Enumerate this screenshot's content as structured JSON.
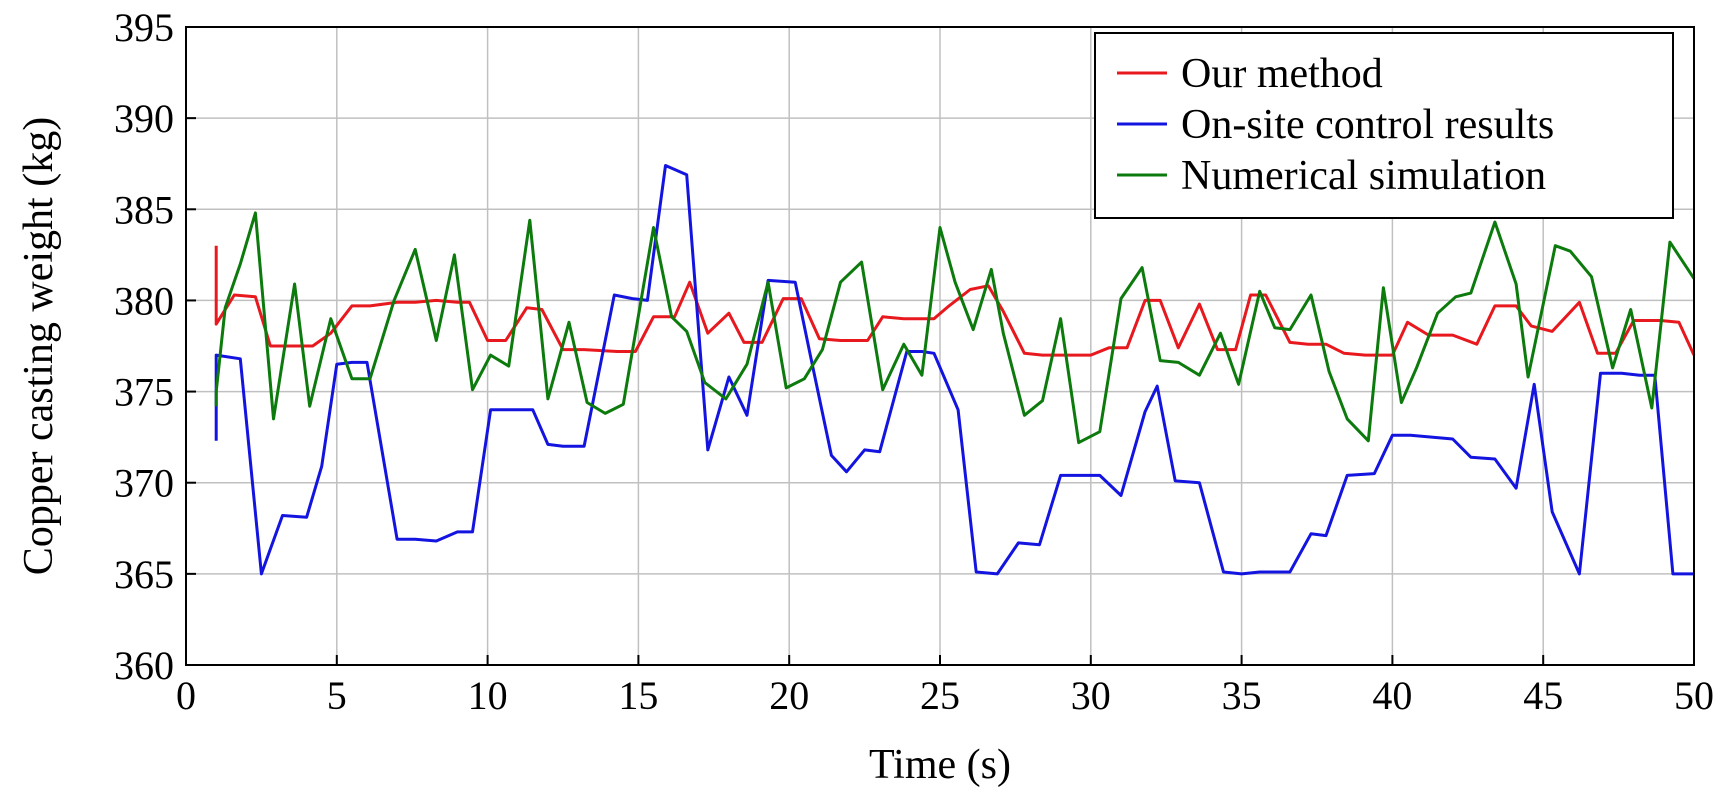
{
  "chart_data": {
    "type": "line",
    "title": "",
    "xlabel": "Time (s)",
    "ylabel": "Copper casting weight (kg)",
    "xlim": [
      0,
      50
    ],
    "ylim": [
      360,
      395
    ],
    "xticks": [
      0,
      5,
      10,
      15,
      20,
      25,
      30,
      35,
      40,
      45,
      50
    ],
    "yticks": [
      360,
      365,
      370,
      375,
      380,
      385,
      390,
      395
    ],
    "grid": true,
    "legend_position": "top-right",
    "series": [
      {
        "name": "Our method",
        "color": "#e8191e",
        "x": [
          1.0,
          1.0,
          1.0,
          1.6,
          2.3,
          2.8,
          3.6,
          4.2,
          4.8,
          5.5,
          6.1,
          7.0,
          7.6,
          8.3,
          9.0,
          9.4,
          10.0,
          10.6,
          11.3,
          11.8,
          12.5,
          13.2,
          14.3,
          14.9,
          15.5,
          16.2,
          16.7,
          17.3,
          18.0,
          18.5,
          19.1,
          19.8,
          20.4,
          21.0,
          21.7,
          22.6,
          23.1,
          23.8,
          24.8,
          25.3,
          26.0,
          26.6,
          27.1,
          27.8,
          28.4,
          29.3,
          30.0,
          30.6,
          31.2,
          31.8,
          32.3,
          32.9,
          33.6,
          34.2,
          34.8,
          35.3,
          35.8,
          36.6,
          37.2,
          37.8,
          38.4,
          39.1,
          40.0,
          40.5,
          41.2,
          42.0,
          42.8,
          43.4,
          44.1,
          44.6,
          45.3,
          46.2,
          46.8,
          47.4,
          48.0,
          48.9,
          49.5,
          50.0
        ],
        "y": [
          383.0,
          378.7,
          378.7,
          380.3,
          380.2,
          377.5,
          377.5,
          377.5,
          378.2,
          379.7,
          379.7,
          379.9,
          379.9,
          380.0,
          379.9,
          379.9,
          377.8,
          377.8,
          379.6,
          379.5,
          377.3,
          377.3,
          377.2,
          377.2,
          379.1,
          379.1,
          381.0,
          378.2,
          379.3,
          377.7,
          377.7,
          380.1,
          380.1,
          377.9,
          377.8,
          377.8,
          379.1,
          379.0,
          379.0,
          379.7,
          380.6,
          380.8,
          379.4,
          377.1,
          377.0,
          377.0,
          377.0,
          377.4,
          377.4,
          380.0,
          380.0,
          377.4,
          379.8,
          377.3,
          377.3,
          380.3,
          380.3,
          377.7,
          377.6,
          377.6,
          377.1,
          377.0,
          377.0,
          378.8,
          378.1,
          378.1,
          377.6,
          379.7,
          379.7,
          378.6,
          378.3,
          379.9,
          377.1,
          377.1,
          378.9,
          378.9,
          378.8,
          377.0
        ]
      },
      {
        "name": "On-site control results",
        "color": "#1414e0",
        "x": [
          1.0,
          1.0,
          1.0,
          1.8,
          2.5,
          3.2,
          4.0,
          4.5,
          5.0,
          5.5,
          6.0,
          7.0,
          7.6,
          8.3,
          9.0,
          9.5,
          10.1,
          10.9,
          11.5,
          12.0,
          12.5,
          13.2,
          14.2,
          14.8,
          15.3,
          15.9,
          16.6,
          17.3,
          18.0,
          18.6,
          19.3,
          20.2,
          20.7,
          21.4,
          21.9,
          22.5,
          23.0,
          23.9,
          24.4,
          24.8,
          25.6,
          26.2,
          26.9,
          27.6,
          28.3,
          29.0,
          29.6,
          30.3,
          31.0,
          31.8,
          32.2,
          32.8,
          33.6,
          34.4,
          35.0,
          35.6,
          36.1,
          36.6,
          37.3,
          37.8,
          38.5,
          39.4,
          40.0,
          40.6,
          41.3,
          42.0,
          42.6,
          43.4,
          44.1,
          44.7,
          45.3,
          46.2,
          46.9,
          47.6,
          48.2,
          48.7,
          49.3,
          50.0
        ],
        "y": [
          372.3,
          374.0,
          377.0,
          376.8,
          365.0,
          368.2,
          368.1,
          370.9,
          376.5,
          376.6,
          376.6,
          366.9,
          366.9,
          366.8,
          367.3,
          367.3,
          374.0,
          374.0,
          374.0,
          372.1,
          372.0,
          372.0,
          380.3,
          380.1,
          380.0,
          387.4,
          386.9,
          371.8,
          375.8,
          373.7,
          381.1,
          381.0,
          377.0,
          371.5,
          370.6,
          371.8,
          371.7,
          377.2,
          377.2,
          377.1,
          374.0,
          365.1,
          365.0,
          366.7,
          366.6,
          370.4,
          370.4,
          370.4,
          369.3,
          373.9,
          375.3,
          370.1,
          370.0,
          365.1,
          365.0,
          365.1,
          365.1,
          365.1,
          367.2,
          367.1,
          370.4,
          370.5,
          372.6,
          372.6,
          372.5,
          372.4,
          371.4,
          371.3,
          369.7,
          375.4,
          368.4,
          365.0,
          376.0,
          376.0,
          375.9,
          375.9,
          365.0,
          365.0
        ]
      },
      {
        "name": "Numerical simulation",
        "color": "#0d7a0d",
        "x": [
          1.0,
          1.0,
          1.3,
          1.8,
          2.3,
          2.9,
          3.6,
          4.1,
          4.8,
          5.5,
          6.1,
          6.9,
          7.6,
          8.3,
          8.9,
          9.5,
          10.1,
          10.7,
          11.4,
          12.0,
          12.7,
          13.3,
          13.9,
          14.5,
          15.5,
          16.1,
          16.6,
          17.2,
          17.9,
          18.6,
          19.3,
          19.9,
          20.5,
          21.1,
          21.7,
          22.4,
          23.1,
          23.8,
          24.4,
          25.0,
          25.5,
          26.1,
          26.7,
          27.1,
          27.8,
          28.4,
          29.0,
          29.6,
          30.3,
          31.0,
          31.7,
          32.3,
          32.9,
          33.6,
          34.3,
          34.9,
          35.6,
          36.1,
          36.6,
          37.3,
          37.9,
          38.5,
          39.2,
          39.7,
          40.3,
          40.8,
          41.5,
          42.1,
          42.6,
          43.4,
          44.1,
          44.5,
          45.4,
          45.9,
          46.6,
          47.3,
          47.9,
          48.6,
          49.2,
          50.0
        ],
        "y": [
          374.2,
          375.0,
          379.6,
          382.0,
          384.8,
          373.5,
          380.9,
          374.2,
          379.0,
          375.7,
          375.7,
          380.0,
          382.8,
          377.8,
          382.5,
          375.1,
          377.0,
          376.4,
          384.4,
          374.6,
          378.8,
          374.4,
          373.8,
          374.3,
          384.0,
          379.1,
          378.3,
          375.5,
          374.6,
          376.5,
          381.0,
          375.2,
          375.7,
          377.3,
          381.0,
          382.1,
          375.1,
          377.6,
          375.9,
          384.0,
          381.0,
          378.4,
          381.7,
          378.2,
          373.7,
          374.5,
          379.0,
          372.2,
          372.8,
          380.1,
          381.8,
          376.7,
          376.6,
          375.9,
          378.2,
          375.4,
          380.5,
          378.5,
          378.4,
          380.3,
          376.1,
          373.5,
          372.3,
          380.7,
          374.4,
          376.3,
          379.3,
          380.2,
          380.4,
          384.3,
          380.9,
          375.8,
          383.0,
          382.7,
          381.3,
          376.3,
          379.5,
          374.1,
          383.2,
          381.2
        ]
      }
    ]
  }
}
